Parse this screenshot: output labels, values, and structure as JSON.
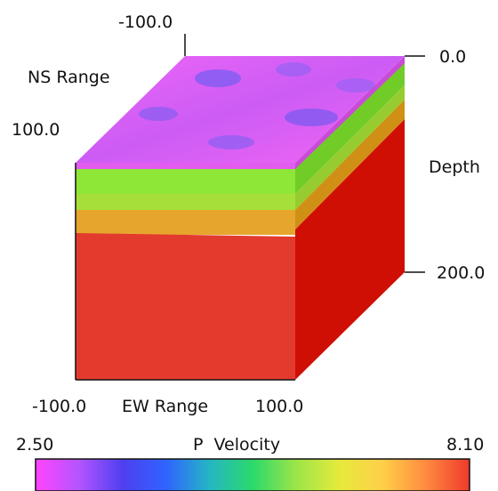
{
  "axes": {
    "ns": {
      "label": "NS Range",
      "min_label": "-100.0",
      "max_label": "100.0"
    },
    "ew": {
      "label": "EW Range",
      "min_label": "-100.0",
      "max_label": "100.0"
    },
    "depth": {
      "label": "Depth",
      "top_label": "0.0",
      "bottom_label": "200.0"
    }
  },
  "colorbar": {
    "title": "P  Velocity",
    "min_label": "2.50",
    "max_label": "8.10",
    "stops": [
      "#ff44ff",
      "#b455ff",
      "#4f3ff0",
      "#2f63ff",
      "#24b6c4",
      "#2bd96b",
      "#9be548",
      "#e6ea3c",
      "#ffcf48",
      "#ff8a40",
      "#ee3a2c"
    ]
  },
  "layers": [
    {
      "name": "surface",
      "front_color": "#e25cf0",
      "side_color": "#c94bd8"
    },
    {
      "name": "layer-1",
      "front_color": "#8ee637",
      "side_color": "#6cc926"
    },
    {
      "name": "layer-2",
      "front_color": "#aadf3e",
      "side_color": "#8cc72f"
    },
    {
      "name": "layer-3",
      "front_color": "#e6a62e",
      "side_color": "#c98a18"
    },
    {
      "name": "mantle",
      "front_color": "#e33a2e",
      "side_color": "#cf0f04"
    }
  ]
}
